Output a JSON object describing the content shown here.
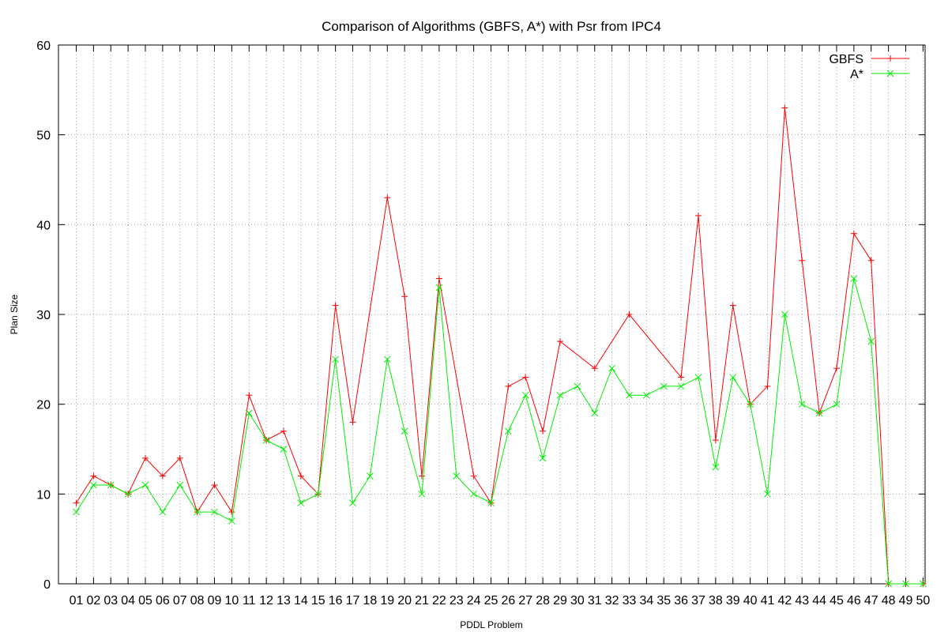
{
  "chart_data": {
    "type": "line",
    "title": "Comparison of Algorithms (GBFS, A*) with Psr from IPC4",
    "xlabel": "PDDL Problem",
    "ylabel": "Plan Size",
    "ylim": [
      0,
      60
    ],
    "yticks": [
      0,
      10,
      20,
      30,
      40,
      50,
      60
    ],
    "grid": true,
    "legend_position": "top-right",
    "categories": [
      "01",
      "02",
      "03",
      "04",
      "05",
      "06",
      "07",
      "08",
      "09",
      "10",
      "11",
      "12",
      "13",
      "14",
      "15",
      "16",
      "17",
      "18",
      "19",
      "20",
      "21",
      "22",
      "23",
      "24",
      "25",
      "26",
      "27",
      "28",
      "29",
      "30",
      "31",
      "32",
      "33",
      "34",
      "35",
      "36",
      "37",
      "38",
      "39",
      "40",
      "41",
      "42",
      "43",
      "44",
      "45",
      "46",
      "47",
      "48",
      "49",
      "50"
    ],
    "series": [
      {
        "name": "GBFS",
        "color": "#ff0000",
        "marker": "plus",
        "values": [
          9,
          12,
          11,
          10,
          14,
          12,
          14,
          8,
          11,
          8,
          21,
          16,
          17,
          12,
          10,
          31,
          18,
          null,
          43,
          32,
          12,
          34,
          null,
          12,
          9,
          22,
          23,
          17,
          27,
          null,
          24,
          null,
          30,
          null,
          null,
          23,
          41,
          16,
          31,
          20,
          22,
          53,
          36,
          19,
          24,
          39,
          36,
          0,
          0,
          0
        ]
      },
      {
        "name": "A*",
        "color": "#00ee00",
        "marker": "cross",
        "values": [
          8,
          11,
          11,
          10,
          11,
          8,
          11,
          8,
          8,
          7,
          19,
          16,
          15,
          9,
          10,
          25,
          9,
          12,
          25,
          17,
          10,
          33,
          12,
          10,
          9,
          17,
          21,
          14,
          21,
          22,
          19,
          24,
          21,
          21,
          22,
          22,
          23,
          13,
          23,
          20,
          10,
          30,
          20,
          19,
          20,
          34,
          27,
          0,
          0,
          0
        ]
      }
    ]
  }
}
